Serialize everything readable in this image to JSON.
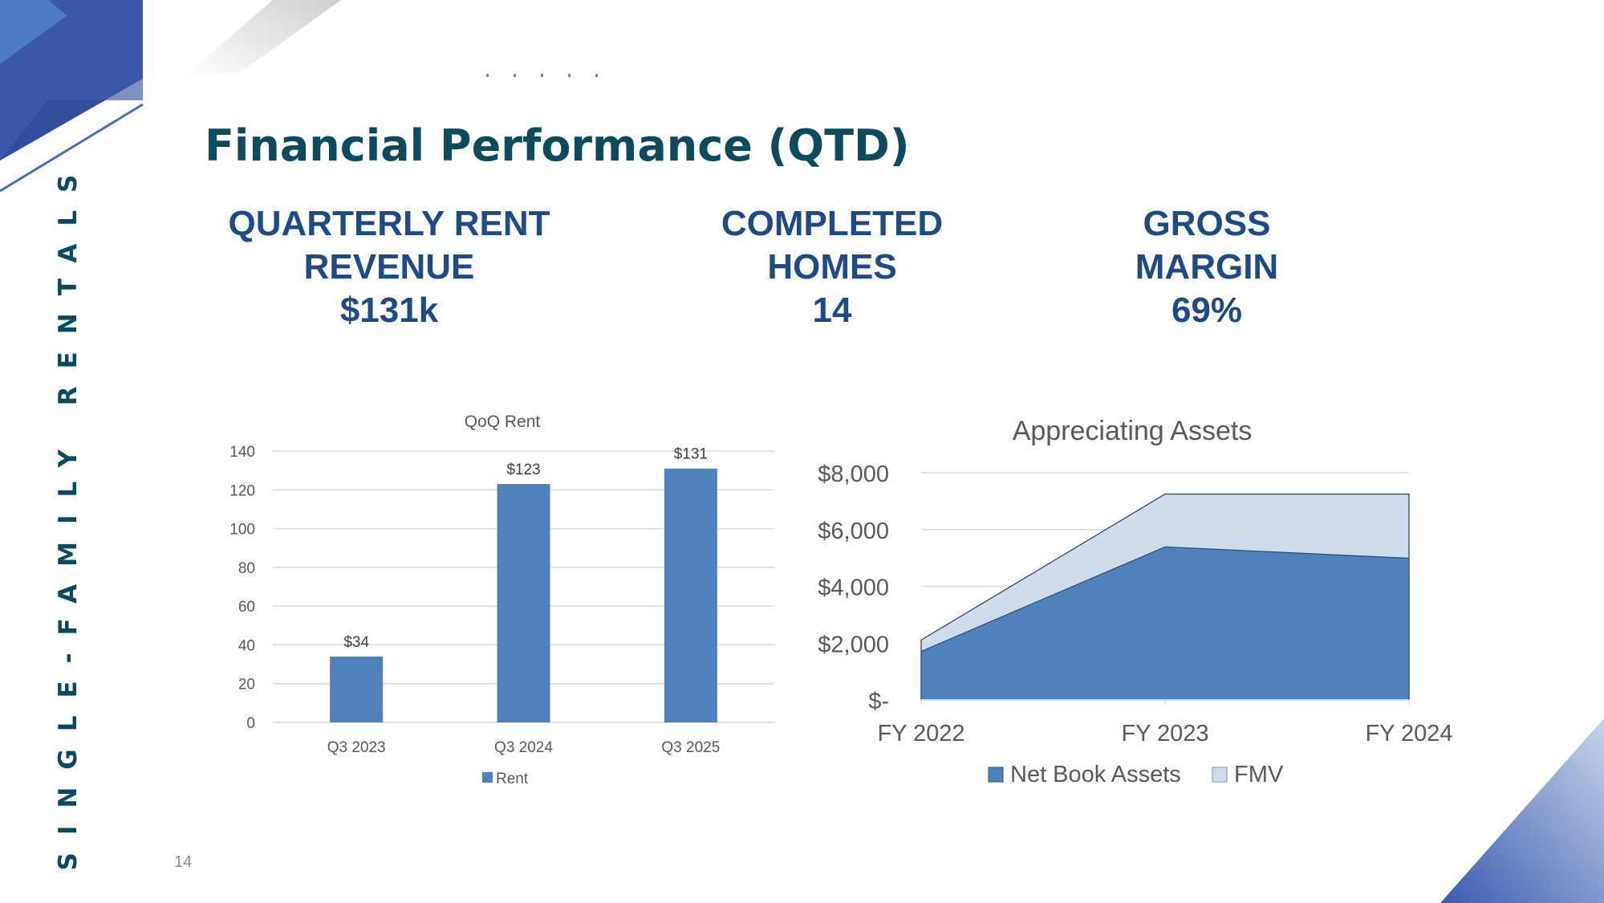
{
  "sidebar_label": "SINGLE-FAMILY RENTALS",
  "title": "Financial Performance (QTD)",
  "kpis": [
    {
      "label_line1": "QUARTERLY RENT",
      "label_line2": "REVENUE",
      "value": "$131k"
    },
    {
      "label_line1": "COMPLETED",
      "label_line2": "HOMES",
      "value": "14"
    },
    {
      "label_line1": "GROSS",
      "label_line2": "MARGIN",
      "value": "69%"
    }
  ],
  "page_number": "14",
  "colors": {
    "primary": "#4f81bd",
    "light": "#d0dcec",
    "title": "#0d4b5c",
    "kpi": "#1f4a86"
  },
  "chart_data": [
    {
      "type": "bar",
      "title": "QoQ Rent",
      "categories": [
        "Q3 2023",
        "Q3 2024",
        "Q3 2025"
      ],
      "series": [
        {
          "name": "Rent",
          "values": [
            34,
            123,
            131
          ]
        }
      ],
      "data_labels": [
        "$34",
        "$123",
        "$131"
      ],
      "yticks": [
        "0",
        "20",
        "40",
        "60",
        "80",
        "100",
        "120",
        "140"
      ],
      "ylim": [
        0,
        140
      ],
      "grid": true,
      "legend": "bottom"
    },
    {
      "type": "area",
      "title": "Appreciating Assets",
      "categories": [
        "FY 2022",
        "FY 2023",
        "FY 2024"
      ],
      "series": [
        {
          "name": "Net Book Assets",
          "values": [
            1710,
            5390,
            4990
          ]
        },
        {
          "name": "FMV",
          "values": [
            2110,
            7250,
            7250
          ]
        }
      ],
      "yticks": [
        "$-",
        "$2,000",
        "$4,000",
        "$6,000",
        "$8,000"
      ],
      "ylim": [
        0,
        8000
      ],
      "grid": true,
      "legend": "bottom"
    }
  ]
}
